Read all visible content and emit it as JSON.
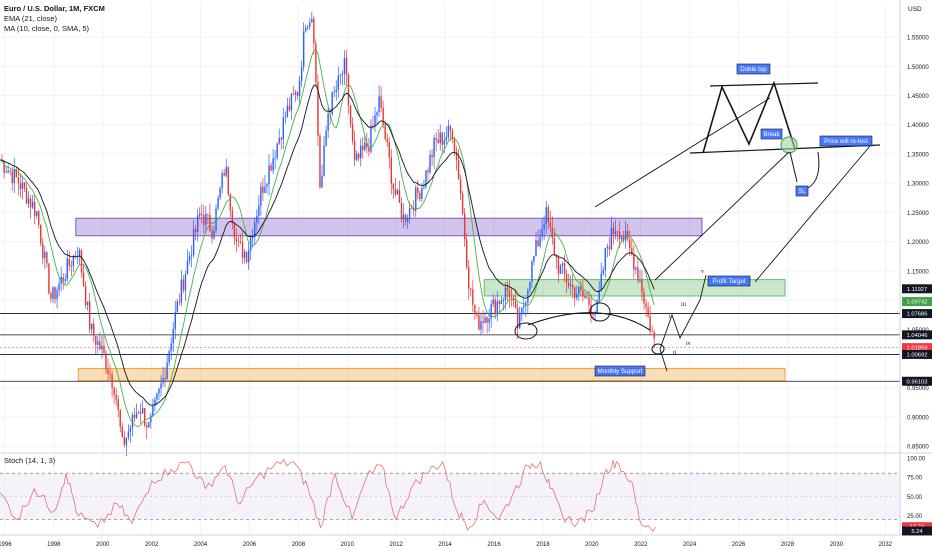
{
  "header": {
    "title": "Euro / U.S. Dollar, 1M, FXCM",
    "indicator_ema": "EMA (21, close)",
    "indicator_ma": "MA (10, close, 0, SMA, 5)",
    "currency": "USD"
  },
  "colors": {
    "up": "#2962ff",
    "down": "#e53935",
    "ema": "#4caf50",
    "ma": "#131722",
    "purple_zone": "#7e57c2",
    "green_zone": "#66bb6a",
    "orange_zone": "#f0a030",
    "stoch_k": "#e57373",
    "stoch_band": "#ede7f6",
    "label_bg": "#2962ff"
  },
  "chart_data": {
    "type": "line",
    "title": "Euro / U.S. Dollar, 1M, FXCM",
    "xlabel": "",
    "ylabel": "USD",
    "price_axis": {
      "ticks": [
        "1.55000",
        "1.50000",
        "1.45000",
        "1.40000",
        "1.35000",
        "1.30000",
        "1.25000",
        "1.20000",
        "1.15000",
        "1.10000",
        "1.05000",
        "0.95000",
        "0.90000",
        "0.85000"
      ],
      "ylim": [
        0.84,
        1.61
      ]
    },
    "x_axis": {
      "ticks": [
        "1996",
        "1998",
        "2000",
        "2002",
        "2004",
        "2006",
        "2008",
        "2010",
        "2012",
        "2014",
        "2016",
        "2018",
        "2020",
        "2022",
        "2024",
        "2026",
        "2028",
        "2030",
        "2032"
      ],
      "xlim": [
        1995.8,
        2032.6
      ]
    },
    "price_anchors": {
      "x": [
        1995.8,
        1996.6,
        1997.3,
        1997.9,
        1998.5,
        1999.0,
        1999.5,
        2000.0,
        2000.5,
        2000.8,
        2001.5,
        2001.9,
        2002.5,
        2003.0,
        2003.5,
        2004.0,
        2004.5,
        2005.0,
        2005.5,
        2005.9,
        2006.5,
        2007.0,
        2007.5,
        2008.0,
        2008.3,
        2008.6,
        2008.9,
        2009.2,
        2009.9,
        2010.3,
        2010.9,
        2011.3,
        2011.9,
        2012.3,
        2012.6,
        2013.1,
        2013.6,
        2014.0,
        2014.3,
        2014.6,
        2015.0,
        2015.3,
        2016.0,
        2016.6,
        2017.0,
        2017.5,
        2017.8,
        2018.1,
        2018.6,
        2019.2,
        2019.8,
        2020.2,
        2020.6,
        2021.0,
        2021.4,
        2021.7,
        2022.0,
        2022.3,
        2022.6
      ],
      "y": [
        1.34,
        1.3,
        1.25,
        1.1,
        1.15,
        1.19,
        1.05,
        1.01,
        0.95,
        0.85,
        0.92,
        0.88,
        0.97,
        1.08,
        1.17,
        1.25,
        1.22,
        1.33,
        1.19,
        1.18,
        1.29,
        1.35,
        1.42,
        1.46,
        1.58,
        1.59,
        1.28,
        1.42,
        1.5,
        1.33,
        1.37,
        1.44,
        1.29,
        1.24,
        1.26,
        1.3,
        1.37,
        1.38,
        1.39,
        1.3,
        1.12,
        1.06,
        1.09,
        1.12,
        1.05,
        1.15,
        1.2,
        1.25,
        1.16,
        1.12,
        1.1,
        1.08,
        1.19,
        1.23,
        1.2,
        1.17,
        1.13,
        1.07,
        1.02
      ]
    },
    "stochastic": {
      "name": "Stoch (14, 1, 3)",
      "ticks": [
        "100.00",
        "75.00",
        "50.00",
        "25.00"
      ],
      "ylim": [
        0,
        105
      ],
      "x": [
        1995.8,
        1996.5,
        1997.2,
        1998.0,
        1998.5,
        1999.0,
        1999.8,
        2000.6,
        2001.2,
        2002.0,
        2002.8,
        2003.5,
        2004.2,
        2005.0,
        2005.6,
        2006.2,
        2007.0,
        2007.8,
        2008.4,
        2008.9,
        2009.5,
        2010.2,
        2010.8,
        2011.4,
        2012.0,
        2012.6,
        2013.2,
        2013.9,
        2014.5,
        2015.0,
        2015.6,
        2016.2,
        2016.8,
        2017.4,
        2017.9,
        2018.3,
        2018.8,
        2019.4,
        2020.0,
        2020.6,
        2021.0,
        2021.6,
        2022.0,
        2022.6
      ],
      "values": [
        55,
        20,
        60,
        30,
        80,
        25,
        10,
        40,
        15,
        70,
        85,
        95,
        60,
        90,
        40,
        70,
        90,
        95,
        60,
        10,
        80,
        20,
        75,
        90,
        20,
        60,
        80,
        95,
        30,
        10,
        45,
        20,
        55,
        90,
        95,
        60,
        25,
        15,
        30,
        85,
        95,
        70,
        15,
        10
      ]
    },
    "price_tags": [
      {
        "label": "1.11927",
        "value": 1.11927,
        "color": "#131722"
      },
      {
        "label": "1.09742",
        "value": 1.09742,
        "color": "#43a047"
      },
      {
        "label": "1.07686",
        "value": 1.07686,
        "color": "#131722"
      },
      {
        "label": "1.04046",
        "value": 1.04046,
        "color": "#131722"
      },
      {
        "label": "1.01859",
        "value": 1.01859,
        "color": "#f23645"
      },
      {
        "label": "1.00692",
        "value": 1.00692,
        "color": "#131722"
      },
      {
        "label": "0.96103",
        "value": 0.96103,
        "color": "#131722"
      }
    ],
    "stoch_tags": [
      {
        "label": "10.74",
        "value": 10.74,
        "color": "#f23645"
      },
      {
        "label": "5.24",
        "value": 5.24,
        "color": "#131722"
      }
    ],
    "annotations": {
      "double_top": "Doble top",
      "break": "Break",
      "retest": "Price will re-test",
      "sl": "SL",
      "profit_target": "Profit Target",
      "monthly_support": "Monthly Support",
      "wave_labels": [
        "i",
        "ii",
        "iii",
        "iv",
        "v"
      ]
    },
    "zones": [
      {
        "name": "purple resistance",
        "x0": 1998.9,
        "x1": 2024.5,
        "y0": 1.21,
        "y1": 1.24
      },
      {
        "name": "green profit target",
        "x0": 2015.6,
        "x1": 2027.9,
        "y0": 1.107,
        "y1": 1.135
      },
      {
        "name": "orange monthly support",
        "x0": 1999.0,
        "x1": 2027.9,
        "y0": 0.962,
        "y1": 0.983
      }
    ]
  }
}
